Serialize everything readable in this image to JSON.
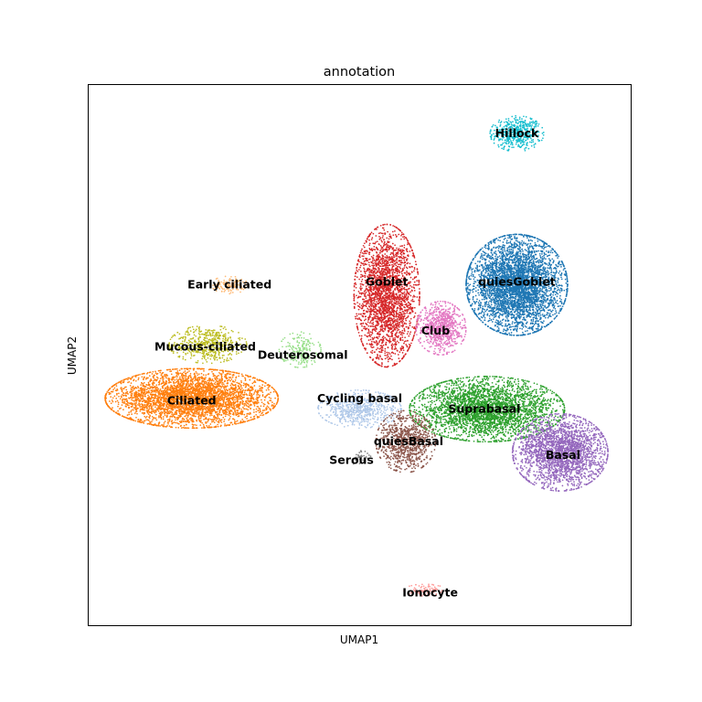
{
  "chart_data": {
    "type": "scatter",
    "title": "annotation",
    "xlabel": "UMAP1",
    "ylabel": "UMAP2",
    "xlim": [
      0,
      10
    ],
    "ylim": [
      0,
      10
    ],
    "grid": false,
    "legend": "on data",
    "series": [
      {
        "name": "Hillock",
        "color": "#17becf",
        "center": [
          7.9,
          9.1
        ],
        "spread": [
          0.45,
          0.3
        ],
        "n": 500
      },
      {
        "name": "Early ciliated",
        "color": "#ffbb78",
        "center": [
          2.6,
          6.3
        ],
        "spread": [
          0.3,
          0.15
        ],
        "n": 120
      },
      {
        "name": "Mucous-ciliated",
        "color": "#bcbd22",
        "center": [
          2.2,
          5.2
        ],
        "spread": [
          0.65,
          0.32
        ],
        "n": 550
      },
      {
        "name": "Ciliated",
        "color": "#ff7f0e",
        "center": [
          1.9,
          4.2
        ],
        "spread": [
          1.45,
          0.5
        ],
        "n": 4000
      },
      {
        "name": "Deuterosomal",
        "color": "#98df8a",
        "center": [
          3.9,
          5.1
        ],
        "spread": [
          0.35,
          0.3
        ],
        "n": 200
      },
      {
        "name": "Goblet",
        "color": "#d62728",
        "center": [
          5.5,
          6.1
        ],
        "spread": [
          0.55,
          1.2
        ],
        "n": 2600
      },
      {
        "name": "quiesGoblet",
        "color": "#1f77b4",
        "center": [
          7.9,
          6.3
        ],
        "spread": [
          0.85,
          0.85
        ],
        "n": 4200
      },
      {
        "name": "Club",
        "color": "#e377c2",
        "center": [
          6.5,
          5.5
        ],
        "spread": [
          0.42,
          0.45
        ],
        "n": 800
      },
      {
        "name": "Suprabasal",
        "color": "#2ca02c",
        "center": [
          7.35,
          4.0
        ],
        "spread": [
          1.3,
          0.55
        ],
        "n": 3200
      },
      {
        "name": "Basal",
        "color": "#9467bd",
        "center": [
          8.7,
          3.2
        ],
        "spread": [
          0.8,
          0.65
        ],
        "n": 2400
      },
      {
        "name": "Cycling basal",
        "color": "#aec7e8",
        "center": [
          5.0,
          4.0
        ],
        "spread": [
          0.7,
          0.32
        ],
        "n": 650
      },
      {
        "name": "quiesBasal",
        "color": "#8c564b",
        "center": [
          5.85,
          3.4
        ],
        "spread": [
          0.5,
          0.52
        ],
        "n": 900
      },
      {
        "name": "Serous",
        "color": "#7f7f7f",
        "center": [
          5.0,
          3.1
        ],
        "spread": [
          0.2,
          0.12
        ],
        "n": 40
      },
      {
        "name": "Ionocyte",
        "color": "#ff9896",
        "center": [
          6.2,
          0.65
        ],
        "spread": [
          0.35,
          0.1
        ],
        "n": 90
      }
    ],
    "labels": [
      {
        "text": "Hillock",
        "x": 7.9,
        "y": 9.1
      },
      {
        "text": "Early ciliated",
        "x": 2.6,
        "y": 6.3
      },
      {
        "text": "Mucous-ciliated",
        "x": 2.15,
        "y": 5.15
      },
      {
        "text": "Ciliated",
        "x": 1.9,
        "y": 4.15
      },
      {
        "text": "Deuterosomal",
        "x": 3.95,
        "y": 5.0
      },
      {
        "text": "Goblet",
        "x": 5.5,
        "y": 6.35
      },
      {
        "text": "quiesGoblet",
        "x": 7.9,
        "y": 6.35
      },
      {
        "text": "Club",
        "x": 6.4,
        "y": 5.45
      },
      {
        "text": "Cycling basal",
        "x": 5.0,
        "y": 4.2
      },
      {
        "text": "Suprabasal",
        "x": 7.3,
        "y": 4.0
      },
      {
        "text": "quiesBasal",
        "x": 5.9,
        "y": 3.4
      },
      {
        "text": "Serous",
        "x": 4.85,
        "y": 3.05
      },
      {
        "text": "Basal",
        "x": 8.75,
        "y": 3.15
      },
      {
        "text": "Ionocyte",
        "x": 6.3,
        "y": 0.6
      }
    ]
  }
}
